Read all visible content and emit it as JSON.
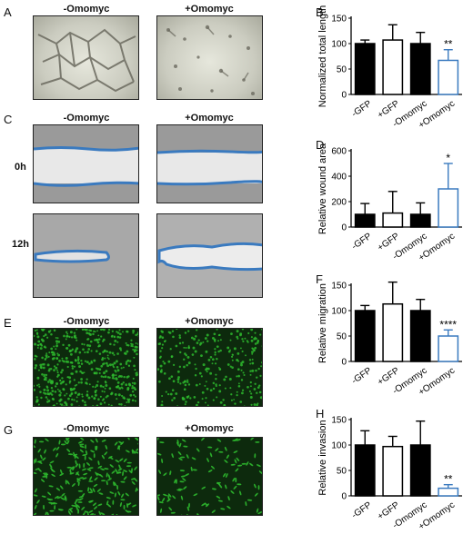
{
  "panels": {
    "A": {
      "letter": "A",
      "left_title": "-Omomyc",
      "right_title": "+Omomyc"
    },
    "C": {
      "letter": "C",
      "left_title": "-Omomyc",
      "right_title": "+Omomyc",
      "row1": "0h",
      "row2": "12h"
    },
    "E": {
      "letter": "E",
      "left_title": "-Omomyc",
      "right_title": "+Omomyc"
    },
    "G": {
      "letter": "G",
      "left_title": "-Omomyc",
      "right_title": "+Omomyc"
    },
    "B": {
      "letter": "B"
    },
    "D": {
      "letter": "D"
    },
    "F": {
      "letter": "F"
    },
    "H": {
      "letter": "H"
    }
  },
  "colors": {
    "black_bar": "#000000",
    "white_bar": "#ffffff",
    "blue": "#3a7abf",
    "fluor_green": "#2eb82e",
    "fluor_bg": "#0d2a0d"
  },
  "chart_data": [
    {
      "id": "B",
      "type": "bar",
      "categories": [
        "-GFP",
        "+GFP",
        "-Omomyc",
        "+Omomyc"
      ],
      "values": [
        100,
        107,
        100,
        67
      ],
      "errors": [
        7,
        30,
        22,
        21
      ],
      "annotations": [
        "",
        "",
        "",
        "**"
      ],
      "ylabel": "Normalized total length",
      "ylim": [
        0,
        150
      ],
      "yticks": [
        0,
        50,
        100,
        150
      ]
    },
    {
      "id": "D",
      "type": "bar",
      "categories": [
        "-GFP",
        "+GFP",
        "-Omomyc",
        "+Omomyc"
      ],
      "values": [
        100,
        110,
        100,
        300
      ],
      "errors": [
        85,
        170,
        90,
        200
      ],
      "annotations": [
        "",
        "",
        "",
        "*"
      ],
      "ylabel": "Relative wound area",
      "ylim": [
        0,
        600
      ],
      "yticks": [
        0,
        200,
        400,
        600
      ]
    },
    {
      "id": "F",
      "type": "bar",
      "categories": [
        "-GFP",
        "+GFP",
        "-Omomyc",
        "+Omomyc"
      ],
      "values": [
        100,
        113,
        100,
        50
      ],
      "errors": [
        10,
        43,
        22,
        12
      ],
      "annotations": [
        "",
        "",
        "",
        "****"
      ],
      "ylabel": "Relative migration",
      "ylim": [
        0,
        150
      ],
      "yticks": [
        0,
        50,
        100,
        150
      ]
    },
    {
      "id": "H",
      "type": "bar",
      "categories": [
        "-GFP",
        "+GFP",
        "-Omomyc",
        "+Omomyc"
      ],
      "values": [
        100,
        97,
        100,
        15
      ],
      "errors": [
        28,
        20,
        47,
        7
      ],
      "annotations": [
        "",
        "",
        "",
        "**"
      ],
      "ylabel": "Relative invasion",
      "ylim": [
        0,
        150
      ],
      "yticks": [
        0,
        50,
        100,
        150
      ]
    }
  ]
}
